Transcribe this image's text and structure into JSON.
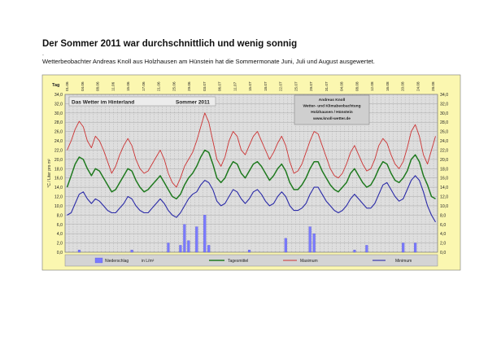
{
  "page": {
    "headline": "Der Sommer 2011 war durchschnittlich und wenig sonnig",
    "dot": ".",
    "subline": "Wetterbeobachter Andreas Knoll aus Holzhausen am Hünstein hat die Sommermonate Juni, Juli und August ausgewertet."
  },
  "chart_data": {
    "type": "line",
    "title": "Das Wetter im Hinterland",
    "season_label": "Sommer 2011",
    "info_box": [
      "Andreas Knoll",
      "Wetter- und Klimabeobachtung",
      "Holzhausen / Hünstein",
      "www.knoll-wetter.de"
    ],
    "x_header_label": "Tag",
    "ylabel": "°C / Liter pro m²",
    "ylim": [
      0,
      34
    ],
    "yticks": [
      "0,0",
      "2,0",
      "4,0",
      "6,0",
      "8,0",
      "10,0",
      "12,0",
      "14,0",
      "16,0",
      "18,0",
      "20,0",
      "22,0",
      "24,0",
      "26,0",
      "28,0",
      "30,0",
      "32,0",
      "34,0"
    ],
    "xtick_labels": [
      "01.06",
      "04.06",
      "08.06",
      "11.06",
      "15.06",
      "17.06",
      "21.06",
      "25.06",
      "29.06",
      "03.07",
      "06.07",
      "11.07",
      "15.07",
      "18.07",
      "22.07",
      "25.07",
      "29.07",
      "31.07",
      "04.08",
      "08.08",
      "12.08",
      "16.08",
      "20.08",
      "24.08",
      "28.08"
    ],
    "legend": [
      {
        "label": "Niederschlag",
        "unit": "in  L/m²",
        "color": "#7a7aff",
        "kind": "bar"
      },
      {
        "label": "Tagesmittel",
        "color": "#1f7a1f",
        "kind": "line"
      },
      {
        "label": "Maximum",
        "color": "#cc3333",
        "kind": "line"
      },
      {
        "label": "Minimum",
        "color": "#2a2aa8",
        "kind": "line"
      }
    ],
    "grid": true,
    "colors": {
      "frame": "#fbf7b0",
      "plot": "#dedede",
      "grid": "#9a9a9a"
    },
    "series": [
      {
        "name": "Maximum",
        "values": [
          22.0,
          24.0,
          26.5,
          28.2,
          27.0,
          24.0,
          22.5,
          25.0,
          24.0,
          22.0,
          19.5,
          17.0,
          18.5,
          21.0,
          23.0,
          24.5,
          23.0,
          20.0,
          18.0,
          17.0,
          17.5,
          19.0,
          20.5,
          22.0,
          20.0,
          17.0,
          15.0,
          14.0,
          16.0,
          18.5,
          20.0,
          21.5,
          24.0,
          27.0,
          30.0,
          28.0,
          24.0,
          20.0,
          18.5,
          20.5,
          24.0,
          26.0,
          25.0,
          22.0,
          21.0,
          23.0,
          25.0,
          26.0,
          24.0,
          22.0,
          20.0,
          21.5,
          23.5,
          25.0,
          23.0,
          19.5,
          17.0,
          17.5,
          19.0,
          21.5,
          24.0,
          26.0,
          25.5,
          23.0,
          20.5,
          18.0,
          16.5,
          16.0,
          17.0,
          19.0,
          21.5,
          23.0,
          21.0,
          19.0,
          17.5,
          18.0,
          20.0,
          23.0,
          24.5,
          23.5,
          21.0,
          19.0,
          18.0,
          19.5,
          22.5,
          26.0,
          27.5,
          25.0,
          21.0,
          19.0,
          22.0,
          25.0
        ]
      },
      {
        "name": "Tagesmittel",
        "values": [
          14.0,
          16.5,
          19.0,
          20.5,
          20.0,
          18.0,
          16.5,
          18.0,
          17.5,
          16.0,
          14.5,
          13.0,
          13.5,
          15.0,
          16.5,
          18.0,
          17.5,
          15.5,
          14.0,
          13.0,
          13.5,
          14.5,
          15.5,
          16.5,
          15.0,
          13.5,
          12.0,
          11.5,
          12.5,
          14.5,
          16.0,
          17.0,
          18.5,
          20.5,
          22.0,
          21.5,
          19.0,
          16.0,
          15.0,
          16.0,
          18.0,
          19.5,
          19.0,
          17.0,
          16.0,
          17.5,
          19.0,
          19.5,
          18.5,
          17.0,
          15.5,
          16.5,
          18.0,
          19.0,
          17.5,
          15.0,
          13.5,
          13.5,
          14.5,
          16.0,
          18.0,
          19.5,
          19.5,
          17.5,
          16.0,
          14.5,
          13.5,
          13.0,
          14.0,
          15.0,
          17.0,
          18.0,
          16.5,
          15.0,
          14.0,
          14.5,
          16.0,
          18.0,
          19.5,
          19.0,
          17.0,
          15.5,
          15.0,
          16.0,
          17.5,
          20.0,
          21.0,
          19.5,
          16.5,
          14.5,
          12.0,
          11.5
        ]
      },
      {
        "name": "Minimum",
        "values": [
          8.0,
          8.5,
          10.5,
          12.5,
          13.0,
          11.5,
          10.5,
          11.5,
          11.0,
          10.0,
          9.0,
          8.5,
          8.5,
          9.5,
          10.5,
          12.0,
          11.5,
          10.0,
          9.0,
          8.5,
          8.5,
          9.5,
          10.5,
          11.5,
          10.5,
          9.0,
          8.0,
          7.5,
          8.5,
          10.0,
          11.5,
          12.5,
          13.0,
          14.5,
          15.5,
          15.0,
          13.5,
          11.0,
          10.0,
          10.5,
          12.0,
          13.5,
          13.0,
          11.5,
          10.5,
          11.5,
          13.0,
          13.5,
          12.5,
          11.0,
          10.0,
          10.5,
          12.0,
          13.0,
          12.0,
          10.0,
          9.0,
          9.0,
          9.5,
          10.5,
          12.5,
          14.0,
          14.0,
          12.5,
          11.0,
          10.0,
          9.0,
          8.5,
          9.0,
          10.0,
          11.5,
          12.5,
          11.5,
          10.5,
          9.5,
          9.5,
          10.5,
          12.5,
          14.5,
          15.0,
          13.5,
          12.0,
          11.0,
          11.5,
          13.5,
          15.5,
          16.5,
          15.5,
          13.0,
          10.0,
          8.0,
          6.5
        ]
      },
      {
        "name": "Niederschlag",
        "values": [
          0,
          0,
          0,
          0.5,
          0,
          0,
          0,
          0,
          0,
          0,
          0,
          0,
          0,
          0,
          0,
          0,
          0.5,
          0,
          0,
          0,
          0,
          0,
          0,
          0,
          0,
          2.0,
          0,
          0,
          1.5,
          6.0,
          2.5,
          0,
          5.5,
          0,
          8.0,
          1.5,
          0,
          0,
          0,
          0,
          0,
          0,
          0,
          0,
          0,
          0.5,
          0,
          0,
          0,
          0,
          0,
          0,
          0,
          0,
          3.0,
          0,
          0,
          0,
          0,
          0,
          5.5,
          4.0,
          0,
          0,
          0,
          0,
          0,
          0,
          0,
          0,
          0,
          0.5,
          0,
          0,
          1.5,
          0,
          0,
          0,
          0,
          0,
          0,
          0,
          0,
          2.0,
          0,
          0,
          2.0,
          0,
          0,
          0,
          0,
          0
        ]
      }
    ]
  }
}
